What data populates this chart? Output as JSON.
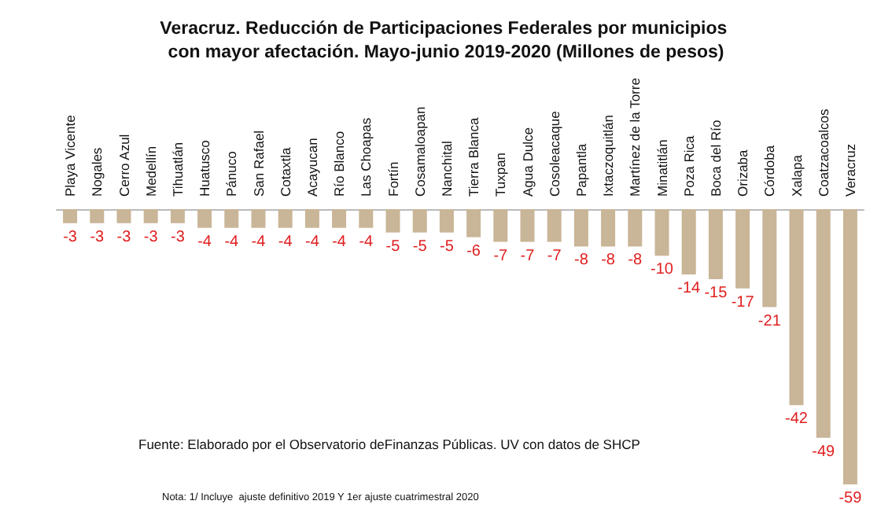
{
  "chart_data": {
    "type": "bar",
    "title": "Veracruz. Reducción de Participaciones Federales por municipios con mayor afectación. Mayo-junio 2019-2020 (Millones de pesos)",
    "categories": [
      "Playa Vicente",
      "Nogales",
      "Cerro Azul",
      "Medellín",
      "Tihuatlán",
      "Huatusco",
      "Pánuco",
      "San Rafael",
      "Cotaxtla",
      "Acayucan",
      "Río Blanco",
      "Las Choapas",
      "Fortín",
      "Cosamaloapan",
      "Nanchital",
      "Tierra Blanca",
      "Tuxpan",
      "Agua Dulce",
      "Cosoleacaque",
      "Papantla",
      "Ixtaczoquitlán",
      "Martínez de la Torre",
      "Minatitlán",
      "Poza Rica",
      "Boca del Río",
      "Orizaba",
      "Córdoba",
      "Xalapa",
      "Coatzacoalcos",
      "Veracruz"
    ],
    "values": [
      -3,
      -3,
      -3,
      -3,
      -3,
      -4,
      -4,
      -4,
      -4,
      -4,
      -4,
      -4,
      -5,
      -5,
      -5,
      -6,
      -7,
      -7,
      -7,
      -8,
      -8,
      -8,
      -10,
      -14,
      -15,
      -17,
      -21,
      -42,
      -49,
      -59
    ],
    "color": "#c9b597",
    "data_labels": true,
    "grid": false,
    "tick_labels": "x",
    "annotations": [
      "Fuente: Elaborado por el Observatorio deFinanzas Públicas. UV con datos de SHCP",
      "Nota: 1/ Incluye  ajuste definitivo 2019 Y 1er ajuste cuatrimestral 2020"
    ]
  }
}
